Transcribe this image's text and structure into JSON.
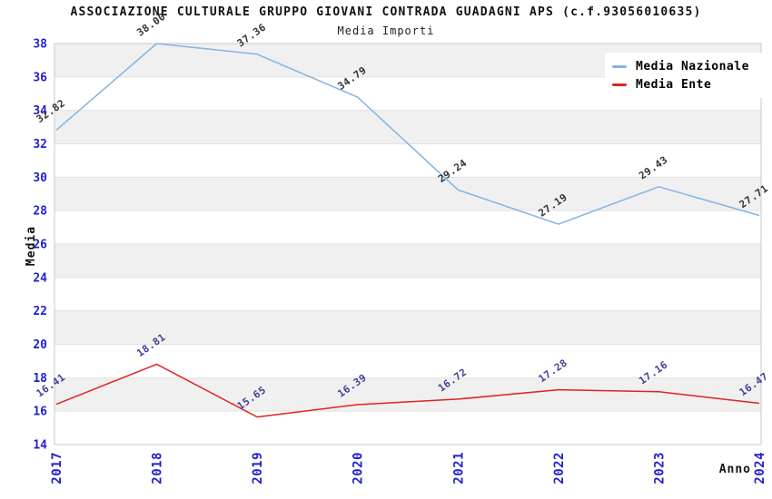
{
  "page": {
    "title": "ASSOCIAZIONE CULTURALE GRUPPO GIOVANI CONTRADA GUADAGNI APS (c.f.93056010635)",
    "subtitle": "Media Importi"
  },
  "chart_data": {
    "type": "line",
    "title": "ASSOCIAZIONE CULTURALE GRUPPO GIOVANI CONTRADA GUADAGNI APS (c.f.93056010635)",
    "subtitle": "Media Importi",
    "xlabel": "Anno",
    "ylabel": "Media",
    "categories": [
      "2017",
      "2018",
      "2019",
      "2020",
      "2021",
      "2022",
      "2023",
      "2024"
    ],
    "series": [
      {
        "name": "Media Nazionale",
        "color": "#82b4e2",
        "label_color": "#333333",
        "values": [
          32.82,
          38.0,
          37.36,
          34.79,
          29.24,
          27.19,
          29.43,
          27.71
        ]
      },
      {
        "name": "Media Ente",
        "color": "#e22222",
        "label_color": "#40409a",
        "values": [
          16.41,
          18.81,
          15.65,
          16.39,
          16.72,
          17.28,
          17.16,
          16.47
        ]
      }
    ],
    "ylim": [
      14,
      38
    ],
    "ytick_step": 2,
    "grid": true,
    "legend_position": "top-right",
    "band_color": "#f0f0f0",
    "gridline_color": "#e2e2e2",
    "plot_border_color": "#c9c9c9",
    "axis_tick_color": "#2222cc",
    "axis_title_color": "#111111"
  }
}
